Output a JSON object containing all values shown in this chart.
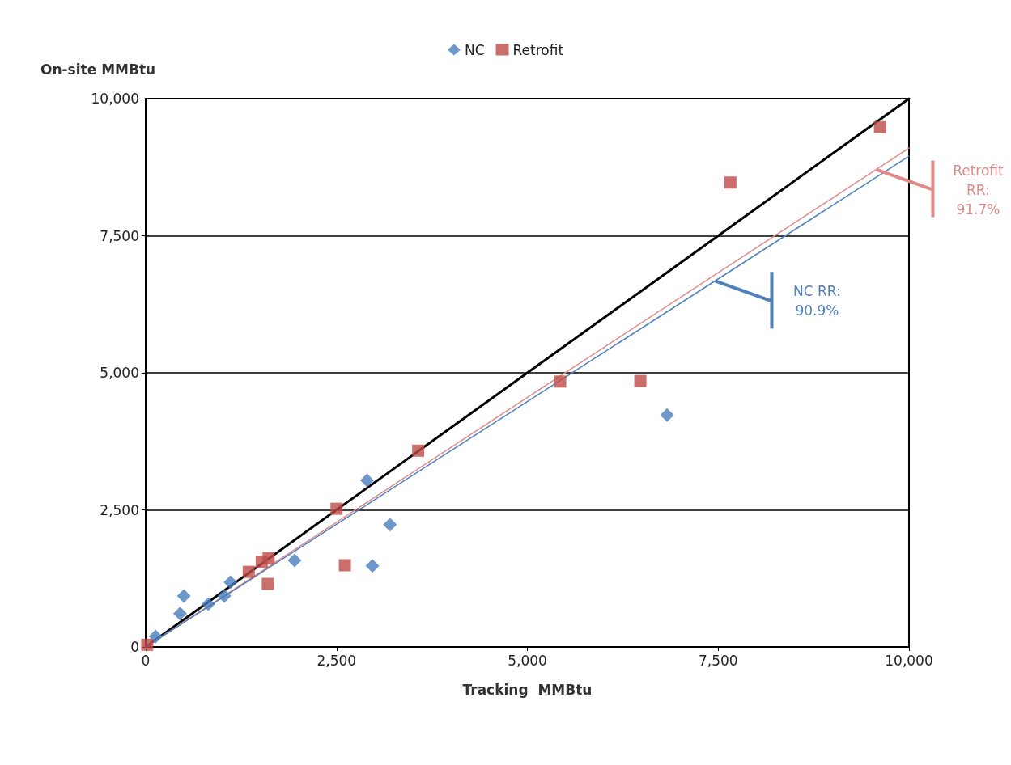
{
  "chart_data": {
    "type": "scatter",
    "xlabel": "Tracking  MMBtu",
    "ylabel": "On-site MMBtu",
    "xlim": [
      0,
      10000
    ],
    "xticks": [
      {
        "value": 0,
        "label": "0"
      },
      {
        "value": 2500,
        "label": "2,500"
      },
      {
        "value": 5000,
        "label": "5,000"
      },
      {
        "value": 7500,
        "label": "7,500"
      },
      {
        "value": 10000,
        "label": "10,000"
      }
    ],
    "ylim": [
      0,
      10000
    ],
    "yticks": [
      {
        "value": 0,
        "label": "0"
      },
      {
        "value": 2500,
        "label": "2,500"
      },
      {
        "value": 5000,
        "label": "5,000"
      },
      {
        "value": 7500,
        "label": "7,500"
      },
      {
        "value": 10000,
        "label": "10,000"
      }
    ],
    "grid": "y",
    "legend": "top",
    "series": [
      {
        "name": "NC",
        "color": "#4a7ebb",
        "marker": "diamond",
        "x": [
          130,
          450,
          500,
          820,
          1030,
          1110,
          1950,
          2900,
          3200,
          2970,
          6830
        ],
        "values": [
          190,
          610,
          930,
          780,
          930,
          1180,
          1580,
          3040,
          2230,
          1480,
          4230
        ]
      },
      {
        "name": "Retrofit",
        "color": "#be4b48",
        "marker": "square",
        "x": [
          20,
          3570,
          2500,
          1350,
          1520,
          1610,
          1600,
          2610,
          5430,
          6480,
          7660,
          9620
        ],
        "values": [
          40,
          3580,
          2520,
          1370,
          1550,
          1620,
          1150,
          1490,
          4840,
          4850,
          8470,
          9480
        ]
      },
      {
        "type": "line",
        "color": "#000000",
        "x": [
          0,
          10000
        ],
        "values": [
          0,
          10000
        ]
      },
      {
        "type": "line",
        "color": "#e08a88",
        "x": [
          0,
          10000
        ],
        "values": [
          0,
          9100
        ]
      },
      {
        "type": "line",
        "color": "#4f81bd",
        "x": [
          0,
          10000
        ],
        "values": [
          0,
          8950
        ]
      }
    ],
    "annotations": [
      "Retrofit RR: 91.7%",
      "NC RR: 90.9%"
    ]
  }
}
